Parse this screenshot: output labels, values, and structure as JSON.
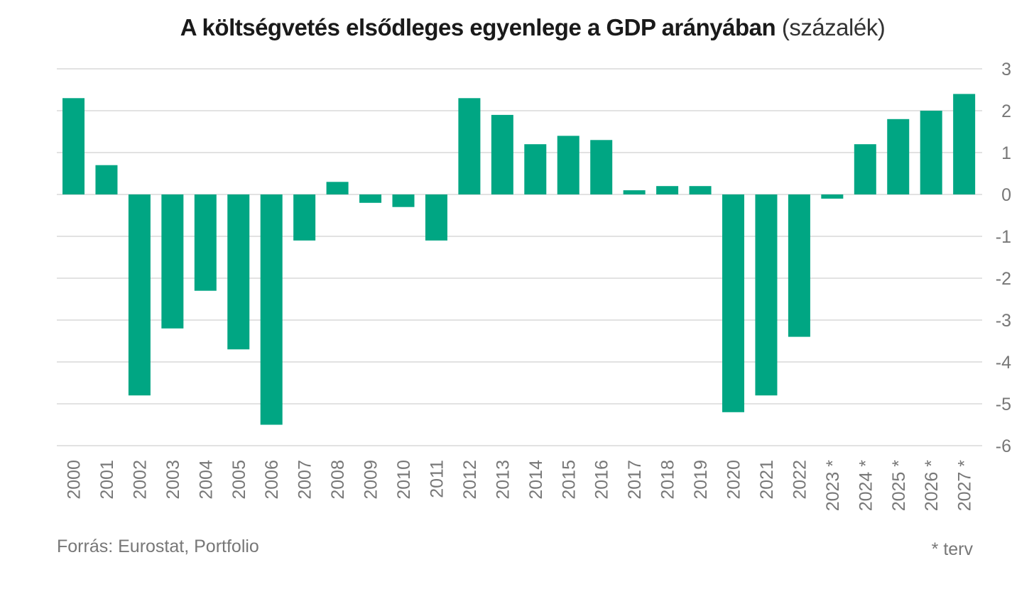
{
  "chart_data": {
    "type": "bar",
    "title": "A költségvetés elsődleges egyenlege a GDP arányában",
    "title_unit": "(százalék)",
    "categories": [
      "2000",
      "2001",
      "2002",
      "2003",
      "2004",
      "2005",
      "2006",
      "2007",
      "2008",
      "2009",
      "2010",
      "2011",
      "2012",
      "2013",
      "2014",
      "2015",
      "2016",
      "2017",
      "2018",
      "2019",
      "2020",
      "2021",
      "2022",
      "2023 *",
      "2024 *",
      "2025 *",
      "2026 *",
      "2027 *"
    ],
    "values": [
      2.3,
      0.7,
      -4.8,
      -3.2,
      -2.3,
      -3.7,
      -5.5,
      -1.1,
      0.3,
      -0.2,
      -0.3,
      -1.1,
      2.3,
      1.9,
      1.2,
      1.4,
      1.3,
      0.1,
      0.2,
      0.2,
      -5.2,
      -4.8,
      -3.4,
      -0.1,
      1.2,
      1.8,
      2.0,
      2.4
    ],
    "ylim": [
      -6,
      3
    ],
    "yticks": [
      "3",
      "2",
      "1",
      "0",
      "-1",
      "-2",
      "-3",
      "-4",
      "-5",
      "-6"
    ],
    "ytick_values": [
      3,
      2,
      1,
      0,
      -1,
      -2,
      -3,
      -4,
      -5,
      -6
    ],
    "y_axis_side": "right",
    "grid": true,
    "bar_color": "#00a683",
    "source": "Forrás: Eurostat, Portfolio",
    "footnote": "* terv"
  }
}
